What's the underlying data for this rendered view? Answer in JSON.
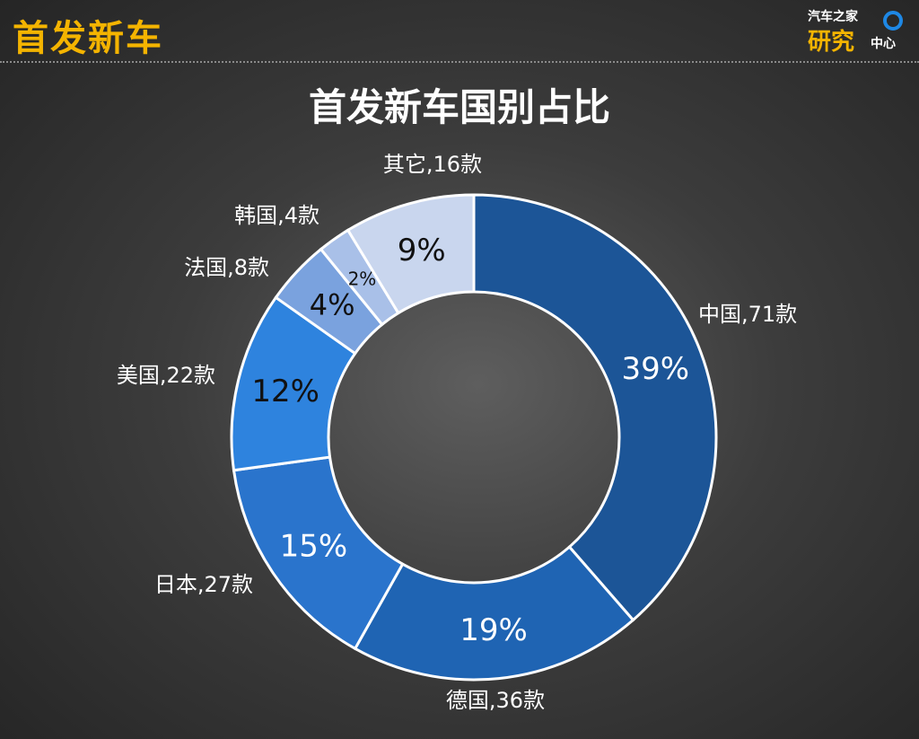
{
  "header": {
    "title": "首发新车"
  },
  "logo": {
    "line1": "汽车之家",
    "line2": "研究",
    "line3": "中心"
  },
  "chart_data": {
    "type": "pie",
    "style": "donut",
    "title": "首发新车国别占比",
    "slices": [
      {
        "label": "中国,71款",
        "value": 71,
        "percent": "39%",
        "color": "#1c5597"
      },
      {
        "label": "德国,36款",
        "value": 36,
        "percent": "19%",
        "color": "#1f64b3"
      },
      {
        "label": "日本,27款",
        "value": 27,
        "percent": "15%",
        "color": "#2a74cc"
      },
      {
        "label": "美国,22款",
        "value": 22,
        "percent": "12%",
        "color": "#2e83de"
      },
      {
        "label": "法国,8款",
        "value": 8,
        "percent": "4%",
        "color": "#7aa2de"
      },
      {
        "label": "韩国,4款",
        "value": 4,
        "percent": "2%",
        "color": "#a9c0e8"
      },
      {
        "label": "其它,16款",
        "value": 16,
        "percent": "9%",
        "color": "#c9d6ee"
      }
    ]
  }
}
